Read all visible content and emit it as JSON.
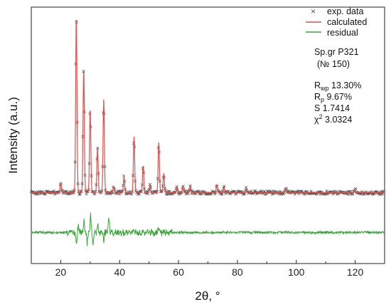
{
  "chart_data": {
    "type": "line",
    "xlabel": "2θ, °",
    "ylabel": "Intensity (a.u.)",
    "xlim": [
      10,
      130
    ],
    "xticks": [
      20,
      40,
      60,
      80,
      100,
      120
    ],
    "xtick_labels": [
      "20",
      "40",
      "60",
      "80",
      "100",
      "120"
    ],
    "ylim": [
      -0.32,
      1.0
    ],
    "y_ticks_shown": false,
    "grid": false,
    "legend": {
      "placement": "top-right",
      "entries": [
        {
          "label": "exp. data",
          "marker": "×",
          "color": "#555555"
        },
        {
          "label": "calculated",
          "color": "#d9534f"
        },
        {
          "label": "residual",
          "color": "#3aa43a"
        }
      ]
    },
    "annotations": {
      "space_group_line1": "Sp.gr P321",
      "space_group_line2": "(№ 150)",
      "rwp_symbol": "R",
      "rwp_sub": "wp",
      "rwp_value": " 13.30%",
      "rp_symbol": "R",
      "rp_sub": "p",
      "rp_value": " 9.67%",
      "s_text": "S 1.7414",
      "chi_symbol": "χ",
      "chi_sup": "2",
      "chi_value": " 3.0324"
    },
    "background_level": 0.045,
    "residual_offset": -0.16,
    "peaks": [
      {
        "x": 20.0,
        "height": 0.05
      },
      {
        "x": 25.3,
        "height": 0.92
      },
      {
        "x": 27.8,
        "height": 0.64
      },
      {
        "x": 30.0,
        "height": 0.43
      },
      {
        "x": 32.5,
        "height": 0.23
      },
      {
        "x": 34.6,
        "height": 0.48
      },
      {
        "x": 38.0,
        "height": 0.03
      },
      {
        "x": 41.5,
        "height": 0.08
      },
      {
        "x": 44.9,
        "height": 0.29
      },
      {
        "x": 48.0,
        "height": 0.14
      },
      {
        "x": 50.3,
        "height": 0.04
      },
      {
        "x": 53.3,
        "height": 0.26
      },
      {
        "x": 55.0,
        "height": 0.1
      },
      {
        "x": 59.5,
        "height": 0.03
      },
      {
        "x": 61.5,
        "height": 0.03
      },
      {
        "x": 64.0,
        "height": 0.03
      },
      {
        "x": 73.0,
        "height": 0.04
      },
      {
        "x": 75.5,
        "height": 0.025
      },
      {
        "x": 83.0,
        "height": 0.02
      },
      {
        "x": 96.5,
        "height": 0.02
      },
      {
        "x": 120.0,
        "height": 0.015
      }
    ],
    "residual_spikes": [
      {
        "x": 25.3,
        "amplitude": -0.1
      },
      {
        "x": 26.0,
        "amplitude": 0.05
      },
      {
        "x": 27.9,
        "amplitude": 0.07
      },
      {
        "x": 29.0,
        "amplitude": -0.06
      },
      {
        "x": 30.1,
        "amplitude": 0.12
      },
      {
        "x": 31.0,
        "amplitude": -0.08
      },
      {
        "x": 32.6,
        "amplitude": 0.04
      },
      {
        "x": 34.6,
        "amplitude": -0.05
      },
      {
        "x": 36.3,
        "amplitude": 0.09
      },
      {
        "x": 44.9,
        "amplitude": 0.03
      },
      {
        "x": 53.4,
        "amplitude": 0.03
      }
    ]
  }
}
